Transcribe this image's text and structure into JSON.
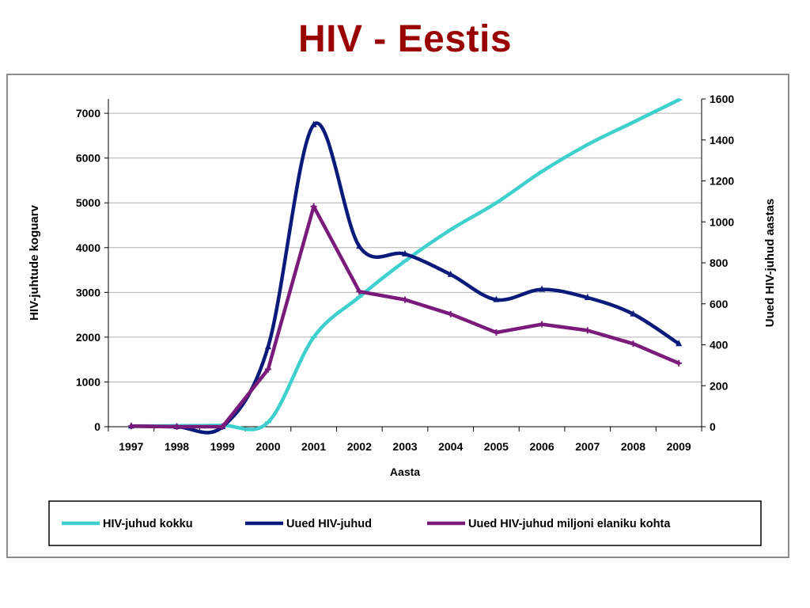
{
  "page": {
    "title": "HIV - Eestis"
  },
  "chart_data": {
    "type": "line",
    "title": "",
    "xlabel": "Aasta",
    "ylabel_left": "HIV-juhtude koguarv",
    "ylabel_right": "Uued HIV-juhud aastas",
    "categories": [
      "1997",
      "1998",
      "1999",
      "2000",
      "2001",
      "2002",
      "2003",
      "2004",
      "2005",
      "2006",
      "2007",
      "2008",
      "2009"
    ],
    "y_left": {
      "min": 0,
      "max": 7000,
      "ticks": [
        0,
        1000,
        2000,
        3000,
        4000,
        5000,
        6000,
        7000
      ]
    },
    "y_right": {
      "min": 0,
      "max": 1600,
      "ticks": [
        0,
        200,
        400,
        600,
        800,
        1000,
        1200,
        1400,
        1600
      ]
    },
    "grid": true,
    "legend_position": "bottom",
    "series": [
      {
        "name": "HIV-juhud kokku",
        "axis": "left",
        "color": "#3fcfcf",
        "smooth": true,
        "values": [
          10,
          20,
          30,
          100,
          2000,
          2900,
          3700,
          4400,
          5000,
          5700,
          6300,
          6800,
          7300
        ]
      },
      {
        "name": "Uued HIV-juhud",
        "axis": "right",
        "color": "#0a1a7a",
        "smooth": true,
        "values": [
          3,
          0,
          0,
          390,
          1474,
          880,
          843,
          743,
          620,
          670,
          630,
          550,
          405
        ]
      },
      {
        "name": "Uued HIV-juhud miljoni elaniku kohta",
        "axis": "right",
        "color": "#7a1a7a",
        "smooth": false,
        "values": [
          3,
          0,
          0,
          280,
          1075,
          660,
          620,
          550,
          460,
          500,
          470,
          405,
          310
        ]
      }
    ]
  }
}
